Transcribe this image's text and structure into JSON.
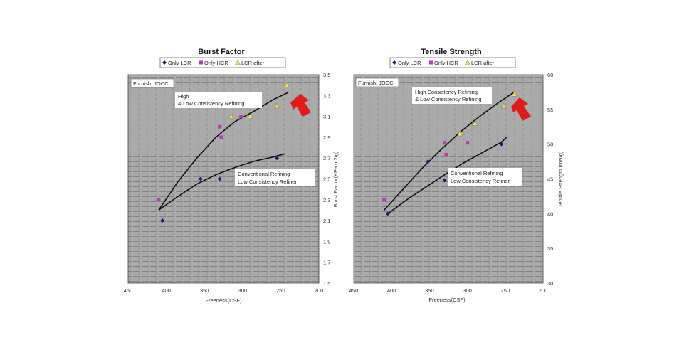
{
  "chart_data": [
    {
      "type": "scatter",
      "title": "Burst Factor",
      "xlabel": "Freeness(CSF)",
      "ylabel": "Burst Factor(KPa m2/g)",
      "xlim": [
        450,
        200
      ],
      "ylim": [
        1.5,
        3.5
      ],
      "x_ticks": [
        "450",
        "400",
        "350",
        "300",
        "250",
        "200"
      ],
      "y_ticks": [
        "1.5",
        "1.7",
        "1.9",
        "2.1",
        "2.3",
        "2.5",
        "2.7",
        "2.9",
        "3.1",
        "3.3",
        "3.5"
      ],
      "y_axis_side": "right",
      "grid": true,
      "legend_position": "top",
      "furnish_label": "Furnish: JOCC",
      "series": [
        {
          "name": "Only LCR",
          "marker": "diamond",
          "color": "#1c1c6b",
          "points": [
            [
              405,
              2.1
            ],
            [
              355,
              2.5
            ],
            [
              330,
              2.5
            ],
            [
              255,
              2.7
            ]
          ]
        },
        {
          "name": "Only HCR",
          "marker": "square",
          "color": "#b03fb0",
          "points": [
            [
              410,
              2.3
            ],
            [
              330,
              3.0
            ],
            [
              328,
              2.9
            ],
            [
              302,
              3.1
            ]
          ]
        },
        {
          "name": "LCR after",
          "marker": "triangle",
          "color": "#e8e64a",
          "points": [
            [
              315,
              3.1
            ],
            [
              290,
              3.1
            ],
            [
              255,
              3.2
            ],
            [
              242,
              3.4
            ]
          ]
        }
      ],
      "curves": [
        {
          "label": [
            "High",
            "& Low Consistency Refining"
          ],
          "points": [
            [
              410,
              2.2
            ],
            [
              385,
              2.47
            ],
            [
              360,
              2.7
            ],
            [
              335,
              2.9
            ],
            [
              310,
              3.05
            ],
            [
              285,
              3.15
            ],
            [
              260,
              3.26
            ],
            [
              240,
              3.33
            ]
          ]
        },
        {
          "label": [
            "Conventional Refining",
            "Low Consistency Refiner"
          ],
          "points": [
            [
              410,
              2.2
            ],
            [
              385,
              2.33
            ],
            [
              360,
              2.45
            ],
            [
              335,
              2.54
            ],
            [
              310,
              2.61
            ],
            [
              285,
              2.67
            ],
            [
              260,
              2.71
            ],
            [
              245,
              2.74
            ]
          ]
        }
      ]
    },
    {
      "type": "scatter",
      "title": "Tensile Strength",
      "xlabel": "Freeness(CSF)",
      "ylabel": "Tensile Strength (mN/g)",
      "xlim": [
        450,
        200
      ],
      "ylim": [
        30,
        60
      ],
      "x_ticks": [
        "450",
        "400",
        "350",
        "300",
        "250",
        "200"
      ],
      "y_ticks": [
        "30",
        "35",
        "40",
        "45",
        "50",
        "55",
        "60"
      ],
      "y_axis_side": "right",
      "grid": true,
      "legend_position": "top",
      "furnish_label": "Furnish: JOCC",
      "series": [
        {
          "name": "Only LCR",
          "marker": "diamond",
          "color": "#1c1c6b",
          "points": [
            [
              405,
              40
            ],
            [
              352,
              47.5
            ],
            [
              330,
              44.8
            ],
            [
              255,
              50
            ]
          ]
        },
        {
          "name": "Only HCR",
          "marker": "square",
          "color": "#b03fb0",
          "points": [
            [
              410,
              42
            ],
            [
              330,
              50.2
            ],
            [
              328,
              48.5
            ],
            [
              300,
              50.2
            ]
          ]
        },
        {
          "name": "LCR after",
          "marker": "triangle",
          "color": "#e8e64a",
          "points": [
            [
              310,
              51.5
            ],
            [
              290,
              53
            ],
            [
              252,
              55.5
            ],
            [
              238,
              57.2
            ]
          ]
        }
      ],
      "curves": [
        {
          "label": [
            "High Consistency Refining",
            "& Low Consistency Refining"
          ],
          "points": [
            [
              410,
              40.5
            ],
            [
              385,
              43.5
            ],
            [
              360,
              46.5
            ],
            [
              335,
              49.2
            ],
            [
              310,
              51.7
            ],
            [
              285,
              53.9
            ],
            [
              260,
              55.9
            ],
            [
              238,
              57.5
            ]
          ]
        },
        {
          "label": [
            "Conventional Refining",
            "Low Consistency Refiner"
          ],
          "points": [
            [
              405,
              40
            ],
            [
              380,
              42
            ],
            [
              355,
              43.8
            ],
            [
              330,
              45.6
            ],
            [
              305,
              47.3
            ],
            [
              280,
              48.8
            ],
            [
              255,
              50.3
            ],
            [
              248,
              51
            ]
          ]
        }
      ]
    }
  ]
}
